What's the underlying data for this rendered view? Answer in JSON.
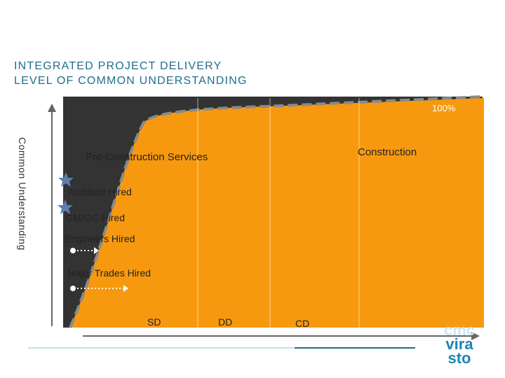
{
  "title": {
    "line1": "INTEGRATED PROJECT DELIVERY",
    "line2": "LEVEL OF COMMON UNDERSTANDING"
  },
  "axis": {
    "y_label": "Common Understanding",
    "top_label": "100%"
  },
  "sections": {
    "preconstruction": "Pre-Construction Services",
    "construction": "Construction"
  },
  "milestones": [
    {
      "label": "Architect Hired",
      "marker": "star-icon"
    },
    {
      "label": "CM/GC Hired",
      "marker": "star-icon"
    },
    {
      "label": "Engineers Hired",
      "marker": "dot-arrow-icon"
    },
    {
      "label": "Major Trades Hired",
      "marker": "dot-arrow-icon"
    }
  ],
  "phases": [
    "SD",
    "DD",
    "CD"
  ],
  "logo": {
    "line1": "cmc",
    "line2": "vira",
    "line3": "sto"
  },
  "colors": {
    "orange": "#f7990f",
    "dark": "#333333",
    "accent": "#1f6f8b",
    "star": "#5b7fa8"
  }
}
